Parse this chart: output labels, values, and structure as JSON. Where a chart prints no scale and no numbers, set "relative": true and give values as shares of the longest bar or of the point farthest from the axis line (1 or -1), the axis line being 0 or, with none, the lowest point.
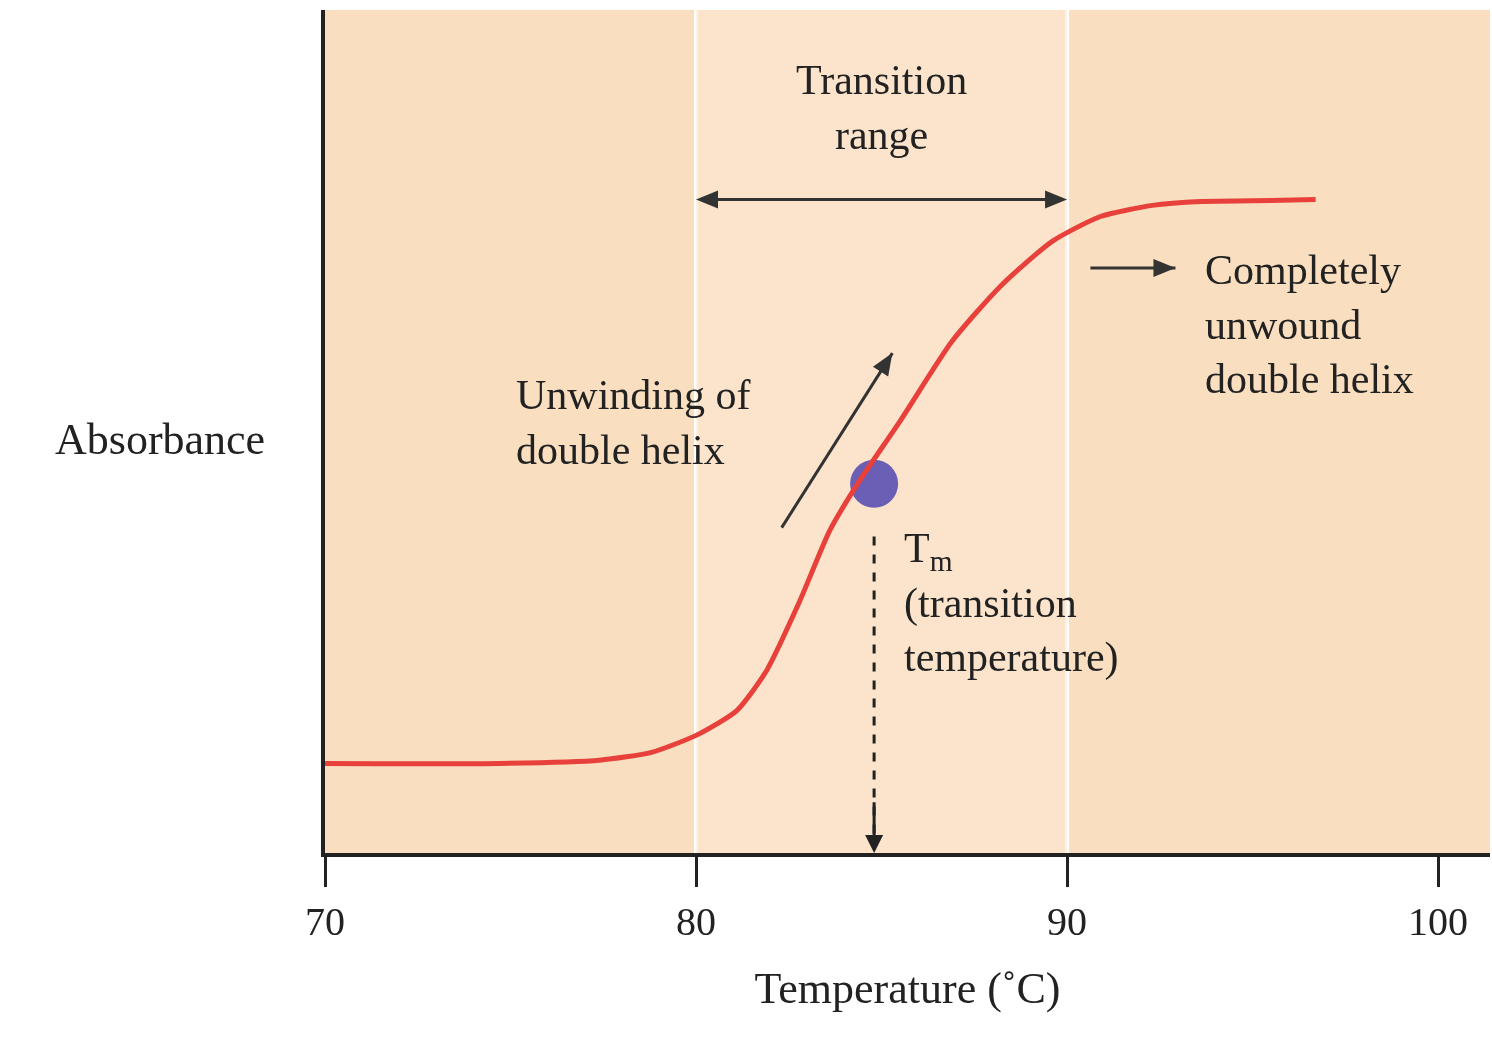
{
  "chart_data": {
    "type": "line",
    "relative": true,
    "xlabel": "Temperature (˚C)",
    "ylabel": "Absorbance",
    "xlim": [
      70,
      101.4
    ],
    "xticks": [
      70,
      80,
      90,
      100
    ],
    "grid": "x",
    "tick_labels": "x",
    "series": [
      {
        "color": "#e8403a",
        "x": [
          70,
          74.7,
          77.4,
          78.8,
          80,
          81.1,
          81.9,
          82.8,
          83.6,
          84.4,
          85.5,
          86.9,
          88.2,
          89.6,
          90.9,
          92.3,
          93.6,
          95.0,
          96.7
        ],
        "values": [
          0.137,
          0.137,
          0.142,
          0.154,
          0.18,
          0.218,
          0.279,
          0.386,
          0.493,
          0.569,
          0.661,
          0.783,
          0.867,
          0.936,
          0.974,
          0.991,
          0.997,
          0.998,
          1
        ]
      },
      {
        "type": "scatter",
        "color": "#6a5fb5",
        "marker": "circle",
        "x": [
          84.8
        ],
        "values": [
          0.565
        ]
      }
    ],
    "bands": [
      {
        "axis": "x",
        "from": 80,
        "to": 90,
        "label": "Transition range",
        "color": "#fbe8d2"
      }
    ],
    "ref_lines": [
      {
        "axis": "x",
        "value": 84.8,
        "label": "T$_{m}$ (transition temperature)",
        "line_style": "dashed",
        "color": "#222222"
      }
    ],
    "annotations": [
      "Unwinding of double helix",
      "Completely unwound double helix"
    ]
  }
}
